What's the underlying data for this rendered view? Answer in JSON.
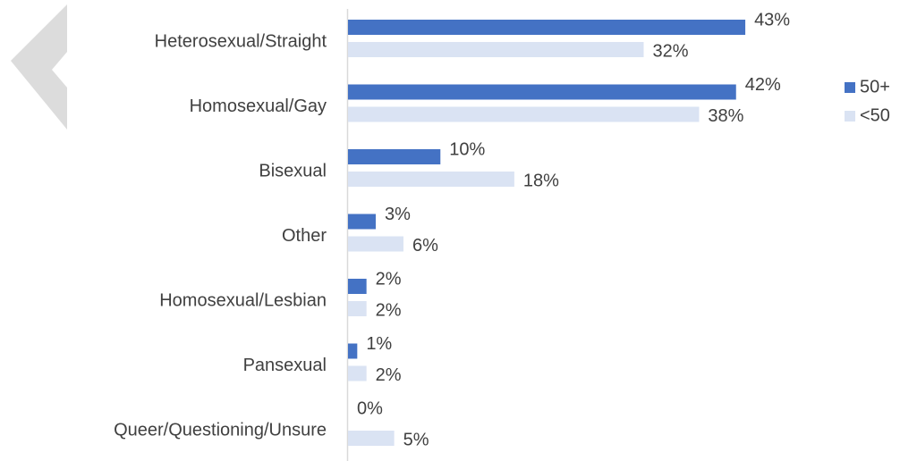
{
  "chart_data": {
    "type": "barh",
    "categories": [
      "Heterosexual/Straight",
      "Homosexual/Gay",
      "Bisexual",
      "Other",
      "Homosexual/Lesbian",
      "Pansexual",
      "Queer/Questioning/Unsure"
    ],
    "series": [
      {
        "name": "50+",
        "color": "#4472c4",
        "values": [
          43,
          42,
          10,
          3,
          2,
          1,
          0
        ],
        "value_labels": [
          "43%",
          "42%",
          "10%",
          "3%",
          "2%",
          "1%",
          "0%"
        ]
      },
      {
        "name": "<50",
        "color": "#dae3f3",
        "values": [
          32,
          38,
          18,
          6,
          2,
          2,
          5
        ],
        "value_labels": [
          "32%",
          "38%",
          "18%",
          "6%",
          "2%",
          "2%",
          "5%"
        ]
      }
    ],
    "xlim": [
      0,
      55
    ],
    "legend": "right"
  }
}
